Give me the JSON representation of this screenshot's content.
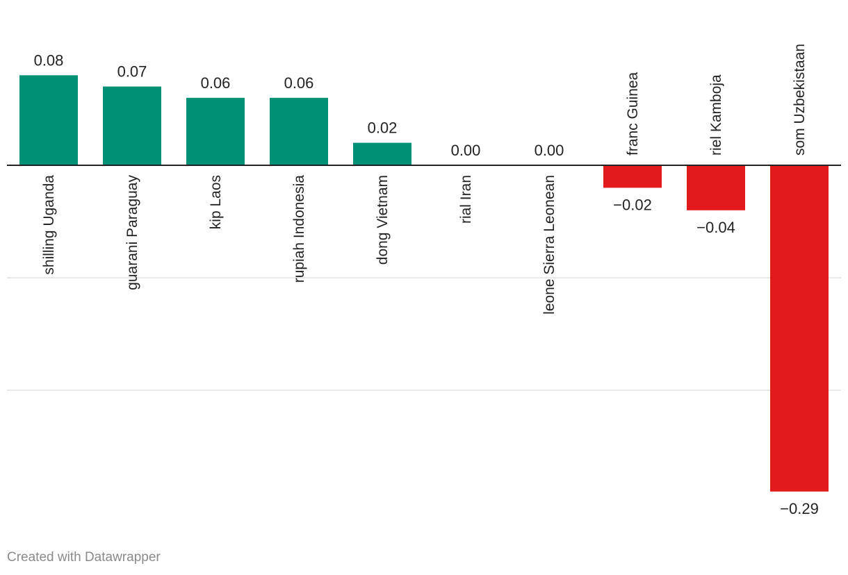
{
  "chart_data": {
    "type": "bar",
    "categories": [
      "shilling Uganda",
      "guarani Paraguay",
      "kip Laos",
      "rupiah Indonesia",
      "dong Vietnam",
      "rial Iran",
      "leone Sierra Leonean",
      "franc Guinea",
      "riel Kamboja",
      "som Uzbekistaan"
    ],
    "values": [
      0.08,
      0.07,
      0.06,
      0.06,
      0.02,
      0.0,
      0.0,
      -0.02,
      -0.04,
      -0.29
    ],
    "value_labels": [
      "0.08",
      "0.07",
      "0.06",
      "0.06",
      "0.02",
      "0.00",
      "0.00",
      "−0.02",
      "−0.04",
      "−0.29"
    ],
    "ylim": [
      -0.3,
      0.08
    ],
    "gridlines": [
      -0.1,
      -0.2
    ],
    "grid": true,
    "title": "",
    "xlabel": "",
    "ylabel": "",
    "colors": {
      "positive": "#009075",
      "negative": "#e31a1c"
    }
  },
  "credit": "Created with Datawrapper"
}
